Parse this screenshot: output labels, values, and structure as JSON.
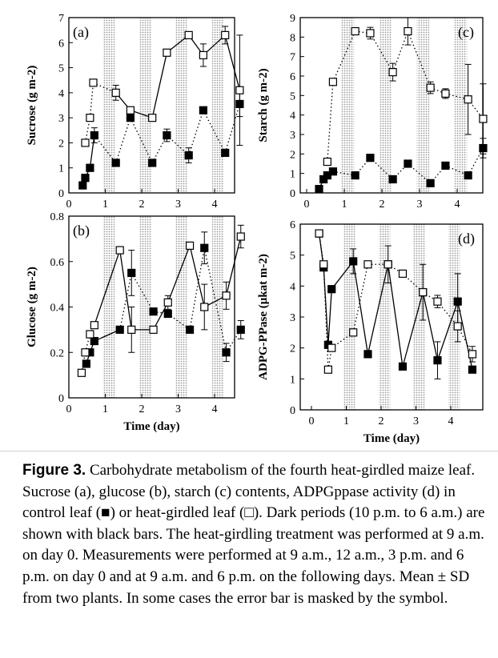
{
  "chart_data": [
    {
      "type": "line",
      "panel_label": "(a)",
      "xlabel": "",
      "ylabel": "Sucrose (g m-2)",
      "xlim": [
        0,
        4.9
      ],
      "ylim": [
        0,
        7
      ],
      "xticks": [
        "0",
        "1",
        "2",
        "3",
        "4"
      ],
      "yticks": [
        "0",
        "1",
        "2",
        "3",
        "4",
        "5",
        "6",
        "7"
      ],
      "dark_periods": [
        [
          0.93,
          1.26
        ],
        [
          1.93,
          2.26
        ],
        [
          2.93,
          3.26
        ],
        [
          3.93,
          4.26
        ]
      ],
      "series": [
        {
          "marker": "filled-square",
          "line": "solid-then-dotted",
          "x": [
            0.38,
            0.45,
            0.58,
            0.7,
            1.29,
            1.69,
            2.29,
            2.69,
            3.29,
            3.69,
            4.29,
            4.69
          ],
          "y": [
            0.3,
            0.6,
            1.0,
            2.3,
            1.2,
            3.0,
            1.2,
            2.3,
            1.5,
            3.3,
            1.6,
            3.55
          ],
          "err": [
            0,
            0,
            0,
            0.3,
            0,
            0,
            0,
            0.25,
            0.3,
            0,
            0,
            0.5
          ]
        },
        {
          "marker": "open-square",
          "line": "dotted-then-solid",
          "x": [
            0.45,
            0.58,
            0.67,
            1.29,
            1.69,
            2.29,
            2.69,
            3.29,
            3.69,
            4.29,
            4.69
          ],
          "y": [
            2.0,
            3.0,
            4.4,
            4.0,
            3.3,
            3.0,
            5.6,
            6.3,
            5.5,
            6.3,
            4.1
          ],
          "err": [
            0,
            0,
            0,
            0.3,
            0,
            0,
            0,
            0,
            0.45,
            0.35,
            2.2
          ]
        }
      ]
    },
    {
      "type": "line",
      "panel_label": "(c)",
      "xlabel": "",
      "ylabel": "Starch (g m-2)",
      "xlim": [
        0,
        4.9
      ],
      "ylim": [
        0,
        9
      ],
      "xticks": [
        "0",
        "1",
        "2",
        "3",
        "4"
      ],
      "yticks": [
        "0",
        "1",
        "2",
        "3",
        "4",
        "5",
        "6",
        "7",
        "8",
        "9"
      ],
      "dark_periods": [
        [
          0.93,
          1.26
        ],
        [
          1.93,
          2.26
        ],
        [
          2.93,
          3.26
        ],
        [
          3.93,
          4.26
        ]
      ],
      "series": [
        {
          "marker": "filled-square",
          "line": "solid-then-dotted",
          "x": [
            0.33,
            0.45,
            0.55,
            0.7,
            1.29,
            1.69,
            2.29,
            2.69,
            3.29,
            3.69,
            4.29,
            4.69
          ],
          "y": [
            0.2,
            0.7,
            0.9,
            1.1,
            0.9,
            1.8,
            0.7,
            1.5,
            0.5,
            1.4,
            0.9,
            2.3
          ],
          "err": [
            0,
            0,
            0,
            0,
            0,
            0,
            0,
            0,
            0,
            0,
            0,
            0.5
          ]
        },
        {
          "marker": "open-square",
          "line": "dotted",
          "x": [
            0.55,
            0.7,
            1.29,
            1.69,
            2.29,
            2.69,
            3.29,
            3.69,
            4.29,
            4.69
          ],
          "y": [
            1.6,
            5.7,
            8.3,
            8.2,
            6.2,
            8.3,
            5.4,
            5.1,
            4.8,
            3.8
          ],
          "err": [
            0,
            0,
            0,
            0.3,
            0.45,
            0.7,
            0.3,
            0.25,
            1.8,
            1.8
          ]
        }
      ]
    },
    {
      "type": "line",
      "panel_label": "(b)",
      "xlabel": "Time (day)",
      "ylabel": "Glucose (g m-2)",
      "xlim": [
        0,
        4.9
      ],
      "ylim": [
        0,
        0.8
      ],
      "xticks": [
        "0",
        "1",
        "2",
        "3",
        "4"
      ],
      "yticks": [
        "0",
        "0.2",
        "0.4",
        "0.6",
        "0.8"
      ],
      "dark_periods": [
        [
          0.93,
          1.26
        ],
        [
          1.93,
          2.26
        ],
        [
          2.93,
          3.26
        ],
        [
          3.93,
          4.26
        ]
      ],
      "series": [
        {
          "marker": "filled-square",
          "line": "solid-then-dotted",
          "x": [
            0.48,
            0.58,
            0.7,
            1.4,
            1.72,
            2.32,
            2.72,
            3.32,
            3.72,
            4.32,
            4.72
          ],
          "y": [
            0.15,
            0.2,
            0.25,
            0.3,
            0.55,
            0.38,
            0.37,
            0.3,
            0.66,
            0.2,
            0.3
          ],
          "err": [
            0,
            0,
            0,
            0,
            0.1,
            0,
            0,
            0,
            0.07,
            0.04,
            0.04
          ]
        },
        {
          "marker": "open-square",
          "line": "dotted-then-solid",
          "x": [
            0.35,
            0.45,
            0.58,
            0.7,
            1.4,
            1.72,
            2.32,
            2.72,
            3.32,
            3.72,
            4.32,
            4.72
          ],
          "y": [
            0.11,
            0.2,
            0.28,
            0.32,
            0.65,
            0.3,
            0.3,
            0.42,
            0.67,
            0.4,
            0.45,
            0.71
          ],
          "err": [
            0,
            0,
            0,
            0,
            0,
            0.1,
            0,
            0.03,
            0,
            0.1,
            0.06,
            0.05
          ]
        }
      ]
    },
    {
      "type": "line",
      "panel_label": "(d)",
      "xlabel": "Time (day)",
      "ylabel": "ADPG-PPase (μkat m-2)",
      "xlim": [
        0,
        4.9
      ],
      "ylim": [
        0,
        6
      ],
      "xticks": [
        "0",
        "1",
        "2",
        "3",
        "4"
      ],
      "yticks": [
        "0",
        "1",
        "2",
        "3",
        "4",
        "5",
        "6"
      ],
      "dark_periods": [
        [
          0.93,
          1.26
        ],
        [
          1.93,
          2.26
        ],
        [
          2.93,
          3.26
        ],
        [
          3.93,
          4.26
        ]
      ],
      "series": [
        {
          "marker": "filled-square",
          "line": "solid",
          "x": [
            0.22,
            0.35,
            0.48,
            0.58,
            1.2,
            1.62,
            2.2,
            2.62,
            3.2,
            3.62,
            4.2,
            4.62
          ],
          "y": [
            5.7,
            4.6,
            2.1,
            3.9,
            4.8,
            1.8,
            4.7,
            1.4,
            3.8,
            1.6,
            3.5,
            1.3
          ],
          "err": [
            0,
            0,
            0,
            0,
            0.4,
            0,
            0.6,
            0,
            0.9,
            0.6,
            0.9,
            0
          ]
        },
        {
          "marker": "open-square",
          "line": "dotted",
          "x": [
            0.22,
            0.35,
            0.48,
            0.58,
            1.2,
            1.62,
            2.2,
            2.62,
            3.2,
            3.62,
            4.2,
            4.62
          ],
          "y": [
            5.7,
            4.7,
            1.3,
            2.0,
            2.5,
            4.7,
            4.7,
            4.4,
            3.8,
            3.5,
            2.7,
            1.8
          ],
          "err": [
            0,
            0,
            0,
            0,
            0,
            0,
            0,
            0,
            0,
            0.2,
            0.5,
            0.25
          ]
        }
      ]
    }
  ],
  "caption": {
    "label": "Figure 3.",
    "text": " Carbohydrate metabolism of the fourth heat-girdled maize leaf. Sucrose (a), glucose (b), starch (c) contents, ADPGppase activity (d) in control leaf (■) or heat-girdled leaf (□). Dark periods (10 p.m. to 6 a.m.) are shown with black bars. The heat-girdling treatment was performed at 9 a.m. on day 0. Measurements were performed at 9 a.m., 12 a.m., 3 p.m. and 6 p.m. on day 0 and at 9 a.m. and 6 p.m. on the following days. Mean ± SD from two plants. In some cases the error bar is masked by the symbol."
  }
}
